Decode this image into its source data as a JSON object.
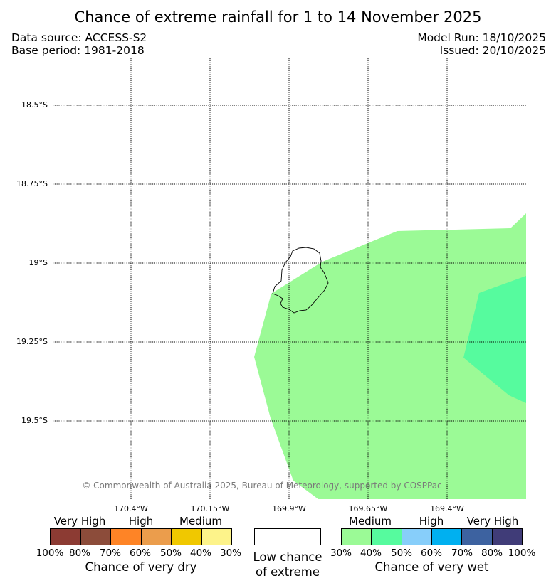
{
  "title": "Chance of extreme rainfall for 1 to 14 November 2025",
  "data_source": "Data source: ACCESS-S2",
  "base_period": "Base period: 1981-2018",
  "model_run": "Model Run: 18/10/2025",
  "issued": "Issued: 20/10/2025",
  "map": {
    "region": "Niue",
    "lat_labels": [
      "18.5°S",
      "18.75°S",
      "19°S",
      "19.25°S",
      "19.5°S"
    ],
    "lon_labels": [
      "170.4°W",
      "170.15°W",
      "169.9°W",
      "169.65°W",
      "169.4°W"
    ],
    "copyright": "© Commonwealth of Australia 2025, Bureau of Meteorology, supported by COSPPac",
    "fill_colors": {
      "wet_medium_30_40": "#9bfa96",
      "wet_medium_40_50": "#56fb9e"
    }
  },
  "legend": {
    "dry": {
      "categories": [
        "Very High",
        "High",
        "Medium"
      ],
      "ticks": [
        "100%",
        "80%",
        "70%",
        "60%",
        "50%",
        "40%",
        "30%"
      ],
      "colors": [
        "#8c3b33",
        "#8c4c3a",
        "#fe8426",
        "#eb9d4c",
        "#f0c800",
        "#fdf38a"
      ],
      "title": "Chance of very dry"
    },
    "low": {
      "line1": "Low chance",
      "line2": "of extreme"
    },
    "wet": {
      "categories": [
        "Medium",
        "High",
        "Very High"
      ],
      "ticks": [
        "30%",
        "40%",
        "50%",
        "60%",
        "70%",
        "80%",
        "100%"
      ],
      "colors": [
        "#9bfa96",
        "#56fb9e",
        "#87cefa",
        "#00b0f0",
        "#3d62a0",
        "#403c78"
      ],
      "title": "Chance of very wet"
    }
  }
}
